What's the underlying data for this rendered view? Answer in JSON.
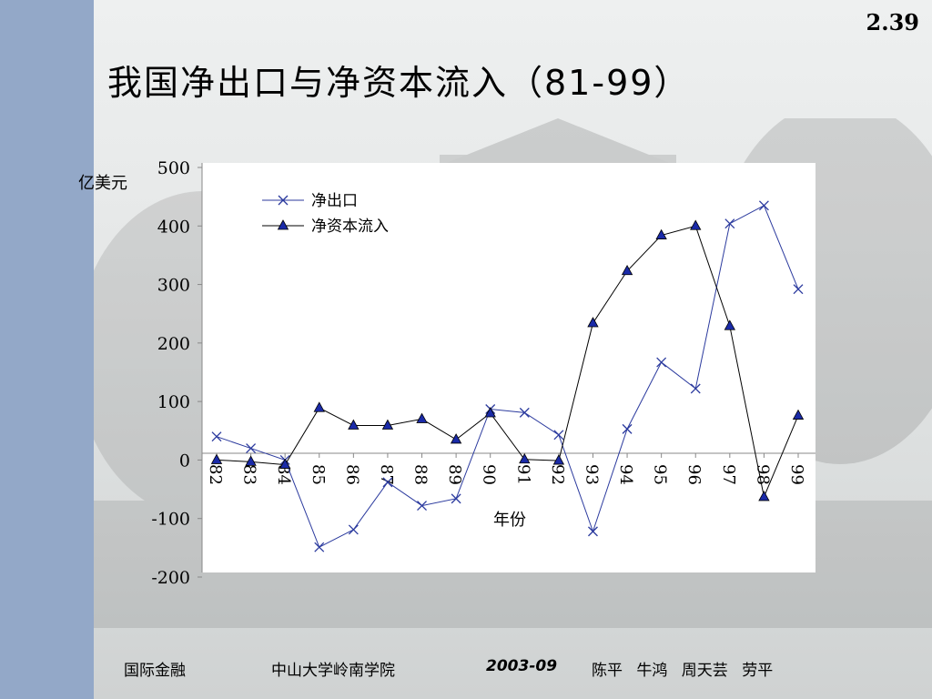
{
  "slide": {
    "number": "2.39",
    "title": "我国净出口与净资本流入（81-99）"
  },
  "footer": {
    "course": "国际金融",
    "school": "中山大学岭南学院",
    "date": "2003-09",
    "authors": "陈平 牛鸿 周天芸 劳平"
  },
  "colors": {
    "sidebar": "#93a8c8",
    "plot_area": "#ffffff",
    "net_exports": "#2b3a9e",
    "net_capital_inflow": "#000000",
    "marker_fill": "#1a2aa8"
  },
  "chart_data": {
    "type": "line",
    "title": "我国净出口与净资本流入（81-99）",
    "xlabel": "年份",
    "ylabel": "亿美元",
    "categories": [
      "82",
      "83",
      "84",
      "85",
      "86",
      "87",
      "88",
      "89",
      "90",
      "91",
      "92",
      "93",
      "94",
      "95",
      "96",
      "97",
      "98",
      "99"
    ],
    "yticks": [
      "500",
      "400",
      "300",
      "200",
      "100",
      "0",
      "-100",
      "-200"
    ],
    "ylim": [
      -200,
      500
    ],
    "grid": false,
    "legend_position": "top-left",
    "series": [
      {
        "name": "净出口",
        "marker": "x",
        "values": [
          40,
          20,
          0,
          -149,
          -119,
          -38,
          -78,
          -66,
          87,
          81,
          43,
          -122,
          53,
          167,
          122,
          404,
          435,
          292
        ]
      },
      {
        "name": "净资本流入",
        "marker": "triangle",
        "values": [
          0,
          -3,
          -8,
          89,
          59,
          59,
          70,
          35,
          80,
          1,
          -1,
          234,
          323,
          384,
          400,
          229,
          -63,
          76
        ]
      }
    ]
  }
}
